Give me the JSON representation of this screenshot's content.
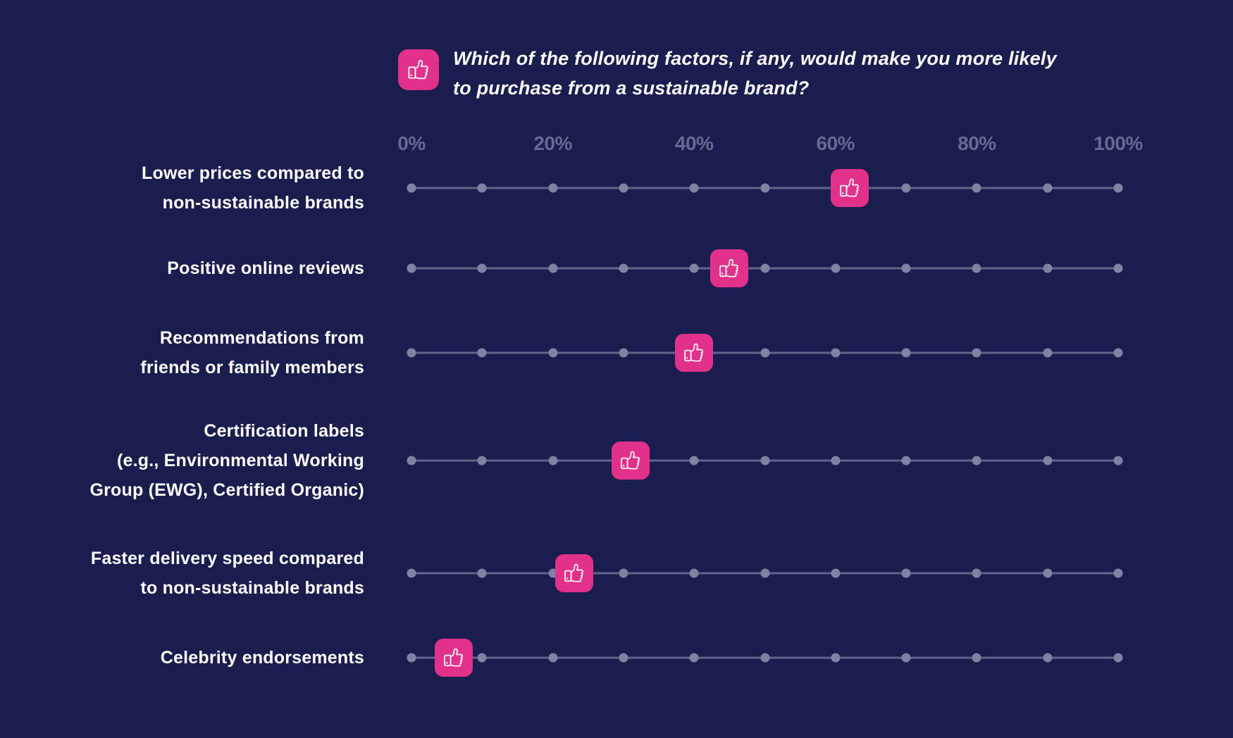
{
  "page": {
    "background": "#1A1E4E"
  },
  "header": {
    "icon": "thumbs-up-icon",
    "title_line1": "Which of the following factors, if any, would make you more likely",
    "title_line2": "to purchase from a sustainable brand?"
  },
  "chart_data": {
    "type": "scatter",
    "variant": "dot-strip-plot",
    "title": "Which of the following factors, if any, would make you more likely to purchase from a sustainable brand?",
    "unit": "%",
    "xlim": [
      0,
      100
    ],
    "x_tick_labels": [
      "0%",
      "20%",
      "40%",
      "60%",
      "80%",
      "100%"
    ],
    "x_dot_interval_pct": 10,
    "marker_symbol": "thumbs-up",
    "grid": false,
    "legend": null,
    "categories": [
      "Lower prices compared to non-sustainable brands",
      "Positive online reviews",
      "Recommendations from friends or family members",
      "Certification labels (e.g., Environmental Working Group (EWG), Certified Organic)",
      "Faster delivery speed compared to non-sustainable brands",
      "Celebrity endorsements"
    ],
    "label_lines": [
      [
        "Lower prices compared to",
        "non-sustainable brands"
      ],
      [
        "Positive online reviews"
      ],
      [
        "Recommendations from",
        "friends or family members"
      ],
      [
        "Certification labels",
        "(e.g., Environmental Working",
        "Group (EWG), Certified Organic)"
      ],
      [
        "Faster delivery speed compared",
        "to non-sustainable brands"
      ],
      [
        "Celebrity endorsements"
      ]
    ],
    "values": [
      62,
      45,
      40,
      31,
      23,
      6
    ],
    "colors": {
      "background": "#1A1E4E",
      "marker": "#E1318B",
      "track_line": "#858AA7",
      "track_dot": "#7E83A3",
      "tick_label": "#646A92",
      "category_label": "#FFFFFF",
      "title": "#FFFFFF",
      "icon_stroke": "#FFFFFF"
    }
  }
}
